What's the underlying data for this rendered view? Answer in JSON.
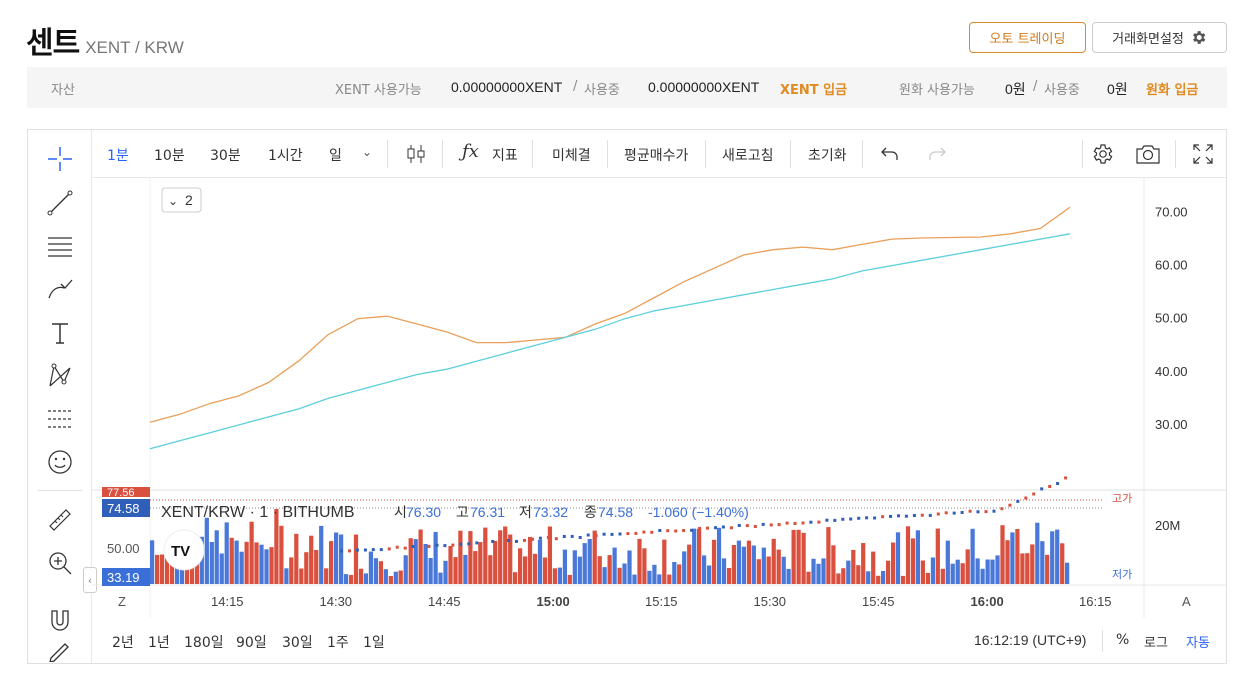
{
  "header": {
    "title": "센트",
    "pair": "XENT / KRW",
    "auto_trade_label": "오토 트레이딩",
    "settings_label": "거래화면설정",
    "settings_icon": "gear-icon"
  },
  "asset_bar": {
    "label": "자산",
    "xent_avail_label": "XENT 사용가능",
    "xent_avail_value": "0.00000000XENT",
    "slash1": "/",
    "xent_used_label": "사용중",
    "xent_used_value": "0.00000000XENT",
    "xent_deposit": "XENT 입금",
    "krw_avail_label": "원화 사용가능",
    "krw_avail_value": "0원",
    "slash2": "/",
    "krw_used_label": "사용중",
    "krw_used_value": "0원",
    "krw_deposit": "원화 입금"
  },
  "toolbar": {
    "intervals": [
      "1분",
      "10분",
      "30분",
      "1시간",
      "일"
    ],
    "indicator_label": "지표",
    "unfilled_label": "미체결",
    "avg_price_label": "평균매수가",
    "refresh_label": "새로고침",
    "reset_label": "초기화"
  },
  "legend": {
    "collapse_count": "2",
    "symbol": "XENT/KRW · 1 · BITHUMB",
    "o_label": "시",
    "o": "76.30",
    "h_label": "고",
    "h": "76.31",
    "l_label": "저",
    "l": "73.32",
    "c_label": "종",
    "c": "74.58",
    "change": "-1.060 (−1.40%)"
  },
  "price_tags": {
    "top_cut": "77.56",
    "current": "74.58",
    "mid": "50.00",
    "low": "33.19",
    "high_label": "고가",
    "low_label": "저가",
    "volume_tick": "20M"
  },
  "bottom": {
    "ranges": [
      "2년",
      "1년",
      "180일",
      "90일",
      "30일",
      "1주",
      "1일"
    ],
    "time": "16:12:19 (UTC+9)",
    "percent": "%",
    "log": "로그",
    "auto": "자동",
    "z_label": "Z",
    "a_label": "A"
  },
  "colors": {
    "up": "#d9503f",
    "down": "#4a78d8",
    "ma_orange": "#e8a05a",
    "ma_cyan": "#5ccfdc",
    "accent": "#2962ff"
  },
  "chart_data": {
    "type": "line",
    "x_ticks": [
      "14:15",
      "14:30",
      "14:45",
      "15:00",
      "15:15",
      "15:30",
      "15:45",
      "16:00",
      "16:15"
    ],
    "y_ticks": [
      "70.00",
      "60.00",
      "50.00",
      "40.00",
      "30.00"
    ],
    "ylim": [
      20,
      75
    ],
    "series": [
      {
        "values": [
          30.5,
          32,
          34,
          35.5,
          38,
          42,
          47,
          50,
          50.5,
          49,
          47.5,
          45.5,
          45.5,
          46,
          46.5,
          49,
          51,
          54,
          57,
          59.5,
          62,
          63,
          63.5,
          63,
          64,
          65,
          65.2,
          65.3,
          65.4,
          66,
          67,
          71
        ]
      },
      {
        "values": [
          25.5,
          27,
          28.5,
          30,
          31.5,
          33,
          35,
          36.5,
          38,
          39.5,
          40.5,
          42,
          43.5,
          45,
          46.5,
          48,
          50,
          51.5,
          52.5,
          53.5,
          54.5,
          55.5,
          56.5,
          57.5,
          59,
          60,
          61,
          62,
          63,
          64,
          65,
          66
        ]
      }
    ]
  }
}
